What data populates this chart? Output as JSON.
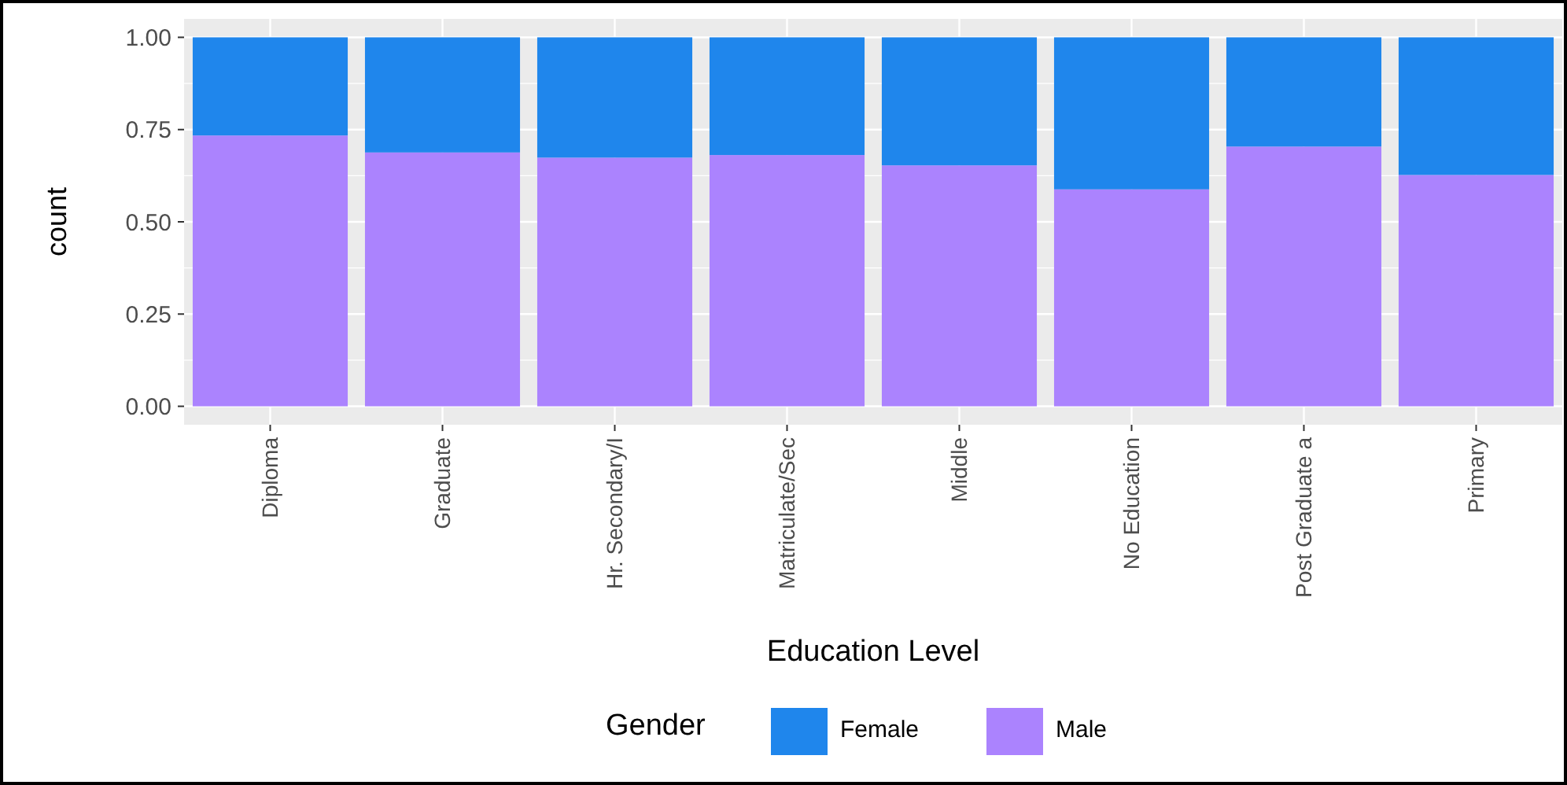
{
  "chart_data": {
    "type": "bar",
    "stacked": true,
    "xlabel": "Education Level",
    "ylabel": "count",
    "legend_title": "Gender",
    "legend": "bottom",
    "grid": true,
    "categories": [
      "Diploma",
      "Graduate",
      "Hr. Secondary/I",
      "Matriculate/Sec",
      "Middle",
      "No Education",
      "Post Graduate a",
      "Primary"
    ],
    "ylim": [
      -0.05,
      1.05
    ],
    "yticks": [
      {
        "value": 0,
        "label": "0.00"
      },
      {
        "value": 0.25,
        "label": "0.25"
      },
      {
        "value": 0.5,
        "label": "0.50"
      },
      {
        "value": 0.75,
        "label": "0.75"
      },
      {
        "value": 1,
        "label": "1.00"
      }
    ],
    "series": [
      {
        "name": "Male",
        "color": "#ab83fe",
        "values": [
          0.734,
          0.688,
          0.674,
          0.681,
          0.653,
          0.588,
          0.704,
          0.627
        ]
      },
      {
        "name": "Female",
        "color": "#1f86ec",
        "values": [
          0.266,
          0.312,
          0.326,
          0.319,
          0.347,
          0.412,
          0.296,
          0.373
        ]
      }
    ]
  }
}
